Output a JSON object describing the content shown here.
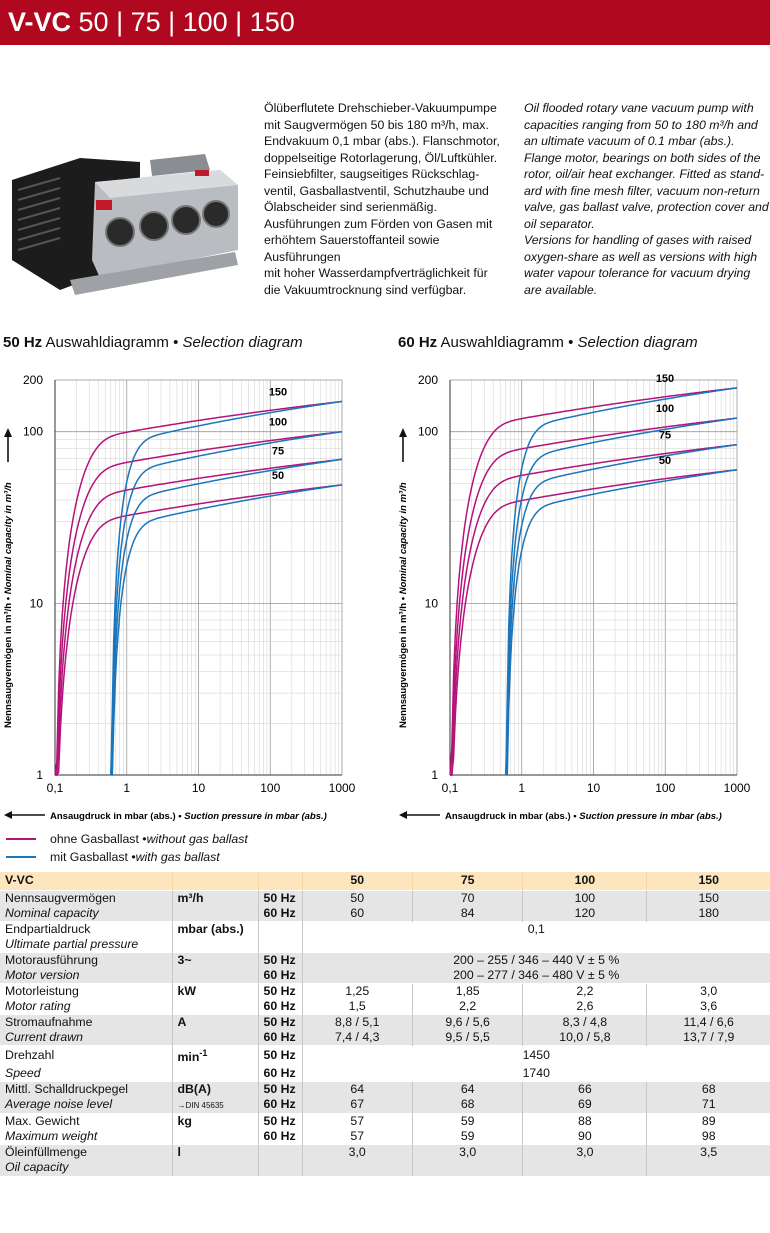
{
  "header": {
    "title_bold": "V-VC",
    "title_models": " 50 | 75 | 100 | 150"
  },
  "description": {
    "de": [
      "Ölüberflutete Drehschieber-Vakuumpumpe",
      "mit Saugvermögen 50 bis 180 m³/h, max.",
      "Endvakuum 0,1 mbar (abs.). Flanschmotor,",
      "doppelseitige Rotorlagerung, Öl/Luftkühler.",
      "Feinsiebfilter, saugseitiges Rückschlag-",
      "ventil, Gasballastventil, Schutzhaube und",
      "Ölabscheider sind serienmäßig.",
      "Ausführungen zum Förden von Gasen mit",
      "erhöhtem Sauerstoffanteil sowie Ausführungen",
      "mit hoher Wasserdampfverträglichkeit für",
      "die Vakuumtrocknung sind verfügbar."
    ],
    "en": [
      "Oil flooded rotary vane vacuum pump with",
      "capacities ranging from 50 to 180 m³/h and",
      "an ultimate vacuum of 0.1 mbar (abs.).",
      "Flange motor, bearings on both sides of the",
      "rotor, oil/air heat exchanger. Fitted as stand-",
      "ard with fine mesh filter, vacuum non-return",
      "valve, gas ballast valve, protection cover and",
      "oil separator.",
      "Versions for handling of gases with raised",
      "oxygen-share as well as versions with high",
      "water vapour tolerance for vacuum drying",
      "are available."
    ]
  },
  "charts": {
    "left": {
      "hz": "50 Hz",
      "title_de": " Auswahldiagramm • ",
      "title_en": "Selection diagram"
    },
    "right": {
      "hz": "60 Hz",
      "title_de": " Auswahldiagramm • ",
      "title_en": "Selection diagram"
    }
  },
  "chart_data": [
    {
      "type": "line",
      "title": "50 Hz Auswahldiagramm • Selection diagram",
      "xlabel_de": "Ansaugdruck in mbar (abs.)",
      "xlabel_en": "Suction pressure in mbar (abs.)",
      "ylabel_de": "Nennsaugvermögen in m³/h",
      "ylabel_en": "Nominal capacity in m³/h",
      "x_scale": "log",
      "y_scale": "log",
      "xlim": [
        0.1,
        1000
      ],
      "ylim": [
        1,
        200
      ],
      "x_ticks": [
        "0,1",
        "1",
        "10",
        "100",
        "1000"
      ],
      "y_ticks": [
        "1",
        "10",
        "100",
        "200"
      ],
      "grid": true,
      "series": [
        {
          "name": "50",
          "color": "#b5127a",
          "x": [
            0.1,
            0.2,
            0.5,
            1,
            10,
            100,
            1000
          ],
          "y": [
            1,
            20,
            31,
            34,
            40,
            44,
            49
          ]
        },
        {
          "name": "75",
          "color": "#b5127a",
          "x": [
            0.1,
            0.2,
            0.5,
            1,
            10,
            100,
            1000
          ],
          "y": [
            1,
            25,
            42,
            48,
            58,
            63,
            69
          ]
        },
        {
          "name": "100",
          "color": "#b5127a",
          "x": [
            0.1,
            0.2,
            0.5,
            1,
            10,
            100,
            1000
          ],
          "y": [
            1,
            32,
            58,
            68,
            83,
            92,
            100
          ]
        },
        {
          "name": "150",
          "color": "#b5127a",
          "x": [
            0.1,
            0.2,
            0.5,
            1,
            10,
            100,
            1000
          ],
          "y": [
            1,
            45,
            85,
            100,
            125,
            138,
            150
          ]
        },
        {
          "name": "50",
          "color": "#1b75bb",
          "x": [
            0.6,
            0.7,
            1,
            2,
            10,
            100,
            1000
          ],
          "y": [
            1,
            10,
            20,
            28,
            37,
            43,
            49
          ]
        },
        {
          "name": "75",
          "color": "#1b75bb",
          "x": [
            0.6,
            0.7,
            1,
            2,
            10,
            100,
            1000
          ],
          "y": [
            1,
            12,
            27,
            38,
            53,
            62,
            69
          ]
        },
        {
          "name": "100",
          "color": "#1b75bb",
          "x": [
            0.6,
            0.7,
            1,
            2,
            10,
            100,
            1000
          ],
          "y": [
            1,
            15,
            35,
            52,
            75,
            90,
            100
          ]
        },
        {
          "name": "150",
          "color": "#1b75bb",
          "x": [
            0.6,
            0.7,
            1,
            2,
            10,
            100,
            1000
          ],
          "y": [
            1,
            20,
            55,
            85,
            115,
            135,
            150
          ]
        }
      ],
      "labels": [
        "150",
        "100",
        "75",
        "50"
      ]
    },
    {
      "type": "line",
      "title": "60 Hz Auswahldiagramm • Selection diagram",
      "xlabel_de": "Ansaugdruck in mbar (abs.)",
      "xlabel_en": "Suction pressure in mbar (abs.)",
      "ylabel_de": "Nennsaugvermögen in m³/h",
      "ylabel_en": "Nominal capacity in m³/h",
      "x_scale": "log",
      "y_scale": "log",
      "xlim": [
        0.1,
        1000
      ],
      "ylim": [
        1,
        200
      ],
      "x_ticks": [
        "0,1",
        "1",
        "10",
        "100",
        "1000"
      ],
      "y_ticks": [
        "1",
        "10",
        "100",
        "200"
      ],
      "grid": true,
      "series": [
        {
          "name": "50",
          "color": "#b5127a",
          "x": [
            0.1,
            0.2,
            0.5,
            1,
            10,
            100,
            1000
          ],
          "y": [
            1,
            24,
            37,
            41,
            49,
            54,
            60
          ]
        },
        {
          "name": "75",
          "color": "#b5127a",
          "x": [
            0.1,
            0.2,
            0.5,
            1,
            10,
            100,
            1000
          ],
          "y": [
            1,
            30,
            52,
            58,
            70,
            77,
            84
          ]
        },
        {
          "name": "100",
          "color": "#b5127a",
          "x": [
            0.1,
            0.2,
            0.5,
            1,
            10,
            100,
            1000
          ],
          "y": [
            1,
            38,
            68,
            80,
            100,
            110,
            120
          ]
        },
        {
          "name": "150",
          "color": "#b5127a",
          "x": [
            0.1,
            0.2,
            0.5,
            1,
            10,
            100,
            1000
          ],
          "y": [
            1,
            55,
            105,
            120,
            150,
            165,
            180
          ]
        },
        {
          "name": "50",
          "color": "#1b75bb",
          "x": [
            0.6,
            0.7,
            1,
            2,
            10,
            100,
            1000
          ],
          "y": [
            1,
            12,
            25,
            35,
            46,
            53,
            60
          ]
        },
        {
          "name": "75",
          "color": "#1b75bb",
          "x": [
            0.6,
            0.7,
            1,
            2,
            10,
            100,
            1000
          ],
          "y": [
            1,
            15,
            33,
            47,
            65,
            76,
            84
          ]
        },
        {
          "name": "100",
          "color": "#1b75bb",
          "x": [
            0.6,
            0.7,
            1,
            2,
            10,
            100,
            1000
          ],
          "y": [
            1,
            18,
            42,
            63,
            92,
            108,
            120
          ]
        },
        {
          "name": "150",
          "color": "#1b75bb",
          "x": [
            0.6,
            0.7,
            1,
            2,
            10,
            100,
            1000
          ],
          "y": [
            1,
            24,
            65,
            105,
            140,
            162,
            180
          ]
        }
      ],
      "labels": [
        "150",
        "100",
        "75",
        "50"
      ]
    }
  ],
  "legend": {
    "without": {
      "de": "ohne Gasballast • ",
      "en": "without gas ballast",
      "color": "#b5127a"
    },
    "with": {
      "de": "mit Gasballast • ",
      "en": "with gas ballast",
      "color": "#1b75bb"
    }
  },
  "table": {
    "header": [
      "V-VC",
      "",
      "",
      "50",
      "75",
      "100",
      "150"
    ],
    "rows": [
      {
        "de": "Nennsaugvermögen",
        "en": "Nominal capacity",
        "unit": "m³/h",
        "hz": [
          "50 Hz",
          "60 Hz"
        ],
        "vals": [
          [
            "50",
            "70",
            "100",
            "150"
          ],
          [
            "60",
            "84",
            "120",
            "180"
          ]
        ]
      },
      {
        "de": "Endpartialdruck",
        "en": "Ultimate partial pressure",
        "unit": "mbar (abs.)",
        "hz": [
          "",
          ""
        ],
        "span": "0,1"
      },
      {
        "de": "Motorausführung",
        "en": "Motor version",
        "unit": "3~",
        "hz": [
          "50 Hz",
          "60 Hz"
        ],
        "spans": [
          "200 – 255 / 346 – 440 V ± 5  %",
          "200 – 277 / 346 – 480 V ± 5 %"
        ]
      },
      {
        "de": "Motorleistung",
        "en": "Motor rating",
        "unit": "kW",
        "hz": [
          "50 Hz",
          "60 Hz"
        ],
        "vals": [
          [
            "1,25",
            "1,85",
            "2,2",
            "3,0"
          ],
          [
            "1,5",
            "2,2",
            "2,6",
            "3,6"
          ]
        ]
      },
      {
        "de": "Stromaufnahme",
        "en": "Current drawn",
        "unit": "A",
        "hz": [
          "50 Hz",
          "60 Hz"
        ],
        "vals": [
          [
            "8,8 / 5,1",
            "9,6 / 5,6",
            "8,3 / 4,8",
            "11,4 / 6,6"
          ],
          [
            "7,4 / 4,3",
            "9,5 / 5,5",
            "10,0 / 5,8",
            "13,7 / 7,9"
          ]
        ]
      },
      {
        "de": "Drehzahl",
        "en": "Speed",
        "unit": "min-1",
        "hz": [
          "50 Hz",
          "60 Hz"
        ],
        "spans": [
          "1450",
          "1740"
        ]
      },
      {
        "de": "Mittl. Schalldruckpegel",
        "en": "Average noise level",
        "unit": "dB(A)",
        "unit_note": "→DIN 45635",
        "hz": [
          "50 Hz",
          "60 Hz"
        ],
        "vals": [
          [
            "64",
            "64",
            "66",
            "68"
          ],
          [
            "67",
            "68",
            "69",
            "71"
          ]
        ]
      },
      {
        "de": "Max. Gewicht",
        "en": "Maximum weight",
        "unit": "kg",
        "hz": [
          "50 Hz",
          "60 Hz"
        ],
        "vals": [
          [
            "57",
            "59",
            "88",
            "89"
          ],
          [
            "57",
            "59",
            "90",
            "98"
          ]
        ]
      },
      {
        "de": "Öleinfüllmenge",
        "en": "Oil capacity",
        "unit": "l",
        "hz": [
          "",
          ""
        ],
        "vals": [
          [
            "3,0",
            "3,0",
            "3,0",
            "3,5"
          ]
        ]
      }
    ]
  }
}
